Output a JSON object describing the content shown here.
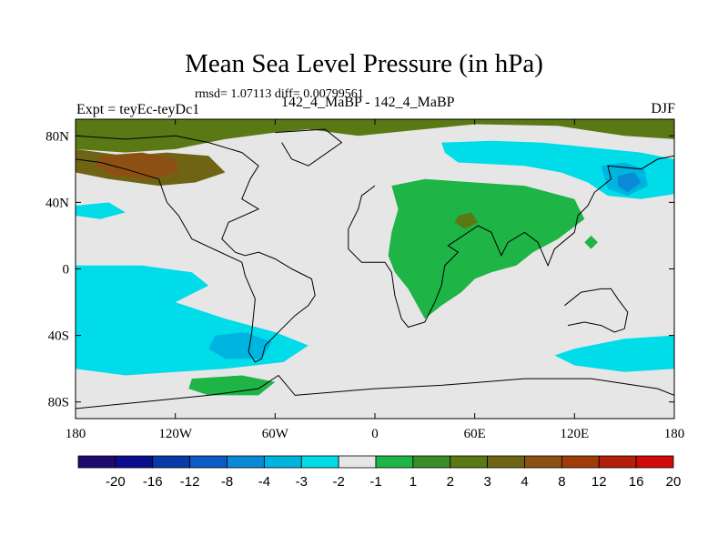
{
  "chart_data": {
    "type": "heatmap",
    "title": "Mean Sea Level Pressure (in hPa)",
    "stats_text": "rmsd= 1.07113 diff= 0.00799561",
    "left_label": "Expt = teyEc-teyDc1",
    "center_label": "142_4_MaBP - 142_4_MaBP",
    "right_label": "DJF",
    "xlim": [
      -180,
      180
    ],
    "ylim": [
      -90,
      90
    ],
    "x_ticks": [
      {
        "value": -180,
        "label": "180"
      },
      {
        "value": -120,
        "label": "120W"
      },
      {
        "value": -60,
        "label": "60W"
      },
      {
        "value": 0,
        "label": "0"
      },
      {
        "value": 60,
        "label": "60E"
      },
      {
        "value": 120,
        "label": "120E"
      },
      {
        "value": 180,
        "label": "180"
      }
    ],
    "y_ticks": [
      {
        "value": 80,
        "label": "80N"
      },
      {
        "value": 40,
        "label": "40N"
      },
      {
        "value": 0,
        "label": "0"
      },
      {
        "value": -40,
        "label": "40S"
      },
      {
        "value": -80,
        "label": "80S"
      }
    ],
    "colorbar": {
      "colors": [
        "#1e0a6e",
        "#0b0d8f",
        "#0a3aa8",
        "#0a5cc4",
        "#0a8ad6",
        "#00b4e0",
        "#00dce8",
        "#e6e6e6",
        "#1eb446",
        "#3c8c28",
        "#5a7814",
        "#6e6414",
        "#8c5014",
        "#a03c0a",
        "#b41e0a",
        "#d20a0a"
      ],
      "labels": [
        "-20",
        "-16",
        "-12",
        "-8",
        "-4",
        "-3",
        "-2",
        "-1",
        "1",
        "2",
        "3",
        "4",
        "8",
        "12",
        "16",
        "20"
      ]
    },
    "anomaly_regions": [
      {
        "name": "arctic-high",
        "color": "#5a7814",
        "points": [
          [
            -180,
            90
          ],
          [
            180,
            90
          ],
          [
            180,
            78
          ],
          [
            150,
            80
          ],
          [
            110,
            86
          ],
          [
            60,
            87
          ],
          [
            20,
            83
          ],
          [
            -10,
            80
          ],
          [
            -40,
            84
          ],
          [
            -60,
            82
          ],
          [
            -90,
            78
          ],
          [
            -120,
            72
          ],
          [
            -150,
            70
          ],
          [
            -180,
            72
          ]
        ]
      },
      {
        "name": "north-pacific-high",
        "color": "#6e6414",
        "points": [
          [
            -180,
            72
          ],
          [
            -150,
            68
          ],
          [
            -125,
            70
          ],
          [
            -100,
            68
          ],
          [
            -90,
            58
          ],
          [
            -108,
            52
          ],
          [
            -130,
            50
          ],
          [
            -160,
            54
          ],
          [
            -180,
            58
          ]
        ]
      },
      {
        "name": "north-pacific-core",
        "color": "#8c5014",
        "points": [
          [
            -165,
            68
          ],
          [
            -140,
            70
          ],
          [
            -120,
            66
          ],
          [
            -118,
            58
          ],
          [
            -135,
            54
          ],
          [
            -158,
            56
          ],
          [
            -168,
            62
          ]
        ]
      },
      {
        "name": "eurasia-low",
        "color": "#00dce8",
        "points": [
          [
            40,
            76
          ],
          [
            70,
            77
          ],
          [
            100,
            76
          ],
          [
            130,
            73
          ],
          [
            160,
            70
          ],
          [
            180,
            66
          ],
          [
            180,
            45
          ],
          [
            160,
            42
          ],
          [
            140,
            44
          ],
          [
            128,
            52
          ],
          [
            112,
            58
          ],
          [
            90,
            62
          ],
          [
            70,
            63
          ],
          [
            50,
            64
          ],
          [
            42,
            70
          ]
        ]
      },
      {
        "name": "east-asia-low",
        "color": "#00b4e0",
        "points": [
          [
            136,
            62
          ],
          [
            150,
            64
          ],
          [
            162,
            60
          ],
          [
            164,
            50
          ],
          [
            152,
            44
          ],
          [
            140,
            48
          ]
        ]
      },
      {
        "name": "east-asia-core",
        "color": "#0a8ad6",
        "points": [
          [
            146,
            56
          ],
          [
            156,
            58
          ],
          [
            160,
            52
          ],
          [
            152,
            46
          ],
          [
            146,
            50
          ]
        ]
      },
      {
        "name": "atlantic-low-west",
        "color": "#00dce8",
        "points": [
          [
            -180,
            38
          ],
          [
            -160,
            40
          ],
          [
            -150,
            34
          ],
          [
            -165,
            30
          ],
          [
            -180,
            32
          ]
        ]
      },
      {
        "name": "south-pacific-low",
        "color": "#00dce8",
        "points": [
          [
            -180,
            2
          ],
          [
            -140,
            2
          ],
          [
            -110,
            -2
          ],
          [
            -100,
            -10
          ],
          [
            -120,
            -20
          ],
          [
            -90,
            -30
          ],
          [
            -60,
            -38
          ],
          [
            -40,
            -46
          ],
          [
            -55,
            -56
          ],
          [
            -90,
            -60
          ],
          [
            -120,
            -62
          ],
          [
            -150,
            -64
          ],
          [
            -180,
            -60
          ]
        ]
      },
      {
        "name": "south-pacific-core",
        "color": "#00b4e0",
        "points": [
          [
            -96,
            -40
          ],
          [
            -78,
            -38
          ],
          [
            -62,
            -44
          ],
          [
            -68,
            -54
          ],
          [
            -90,
            -54
          ],
          [
            -100,
            -48
          ]
        ]
      },
      {
        "name": "indian-ocean-low",
        "color": "#00dce8",
        "points": [
          [
            120,
            -48
          ],
          [
            150,
            -42
          ],
          [
            180,
            -40
          ],
          [
            180,
            -60
          ],
          [
            150,
            -62
          ],
          [
            120,
            -58
          ],
          [
            108,
            -52
          ]
        ]
      },
      {
        "name": "southern-ocean-high",
        "color": "#1eb446",
        "points": [
          [
            -110,
            -66
          ],
          [
            -80,
            -64
          ],
          [
            -60,
            -68
          ],
          [
            -70,
            -76
          ],
          [
            -100,
            -76
          ],
          [
            -112,
            -72
          ]
        ]
      },
      {
        "name": "africa-europe-high",
        "color": "#1eb446",
        "points": [
          [
            10,
            50
          ],
          [
            30,
            54
          ],
          [
            60,
            52
          ],
          [
            90,
            50
          ],
          [
            120,
            42
          ],
          [
            126,
            30
          ],
          [
            110,
            18
          ],
          [
            95,
            10
          ],
          [
            85,
            2
          ],
          [
            70,
            -2
          ],
          [
            60,
            -6
          ],
          [
            52,
            -14
          ],
          [
            40,
            -22
          ],
          [
            30,
            -30
          ],
          [
            20,
            -12
          ],
          [
            12,
            -2
          ],
          [
            8,
            8
          ],
          [
            10,
            22
          ],
          [
            14,
            36
          ]
        ]
      },
      {
        "name": "arabia-high-core",
        "color": "#5a7814",
        "points": [
          [
            50,
            32
          ],
          [
            58,
            34
          ],
          [
            62,
            28
          ],
          [
            54,
            24
          ],
          [
            48,
            28
          ]
        ]
      },
      {
        "name": "small-high-a",
        "color": "#1eb446",
        "points": [
          [
            130,
            20
          ],
          [
            134,
            16
          ],
          [
            130,
            12
          ],
          [
            126,
            16
          ]
        ]
      }
    ],
    "coastlines": [
      {
        "name": "americas-outline",
        "points": [
          [
            -180,
            80
          ],
          [
            -150,
            78
          ],
          [
            -120,
            80
          ],
          [
            -100,
            76
          ],
          [
            -80,
            70
          ],
          [
            -70,
            62
          ],
          [
            -75,
            54
          ],
          [
            -80,
            42
          ],
          [
            -70,
            36
          ],
          [
            -88,
            28
          ],
          [
            -92,
            18
          ],
          [
            -84,
            10
          ],
          [
            -78,
            8
          ],
          [
            -70,
            10
          ],
          [
            -60,
            6
          ],
          [
            -50,
            0
          ],
          [
            -38,
            -6
          ],
          [
            -36,
            -16
          ],
          [
            -40,
            -22
          ],
          [
            -48,
            -28
          ],
          [
            -56,
            -36
          ],
          [
            -66,
            -46
          ],
          [
            -68,
            -54
          ],
          [
            -72,
            -56
          ],
          [
            -76,
            -50
          ],
          [
            -74,
            -38
          ],
          [
            -72,
            -18
          ],
          [
            -78,
            -4
          ],
          [
            -80,
            4
          ],
          [
            -110,
            18
          ],
          [
            -118,
            32
          ],
          [
            -125,
            40
          ],
          [
            -130,
            54
          ],
          [
            -150,
            60
          ],
          [
            -165,
            64
          ],
          [
            -180,
            66
          ]
        ]
      },
      {
        "name": "afro-eurasia-outline",
        "points": [
          [
            0,
            50
          ],
          [
            -8,
            44
          ],
          [
            -10,
            36
          ],
          [
            -16,
            24
          ],
          [
            -16,
            12
          ],
          [
            -8,
            4
          ],
          [
            6,
            4
          ],
          [
            10,
            -2
          ],
          [
            12,
            -16
          ],
          [
            16,
            -30
          ],
          [
            20,
            -35
          ],
          [
            30,
            -32
          ],
          [
            36,
            -20
          ],
          [
            40,
            -10
          ],
          [
            42,
            2
          ],
          [
            50,
            10
          ],
          [
            44,
            14
          ],
          [
            56,
            22
          ],
          [
            62,
            26
          ],
          [
            70,
            22
          ],
          [
            76,
            8
          ],
          [
            80,
            16
          ],
          [
            90,
            22
          ],
          [
            98,
            16
          ],
          [
            104,
            2
          ],
          [
            108,
            12
          ],
          [
            120,
            22
          ],
          [
            122,
            32
          ],
          [
            128,
            38
          ],
          [
            132,
            46
          ],
          [
            142,
            54
          ],
          [
            140,
            62
          ],
          [
            160,
            60
          ],
          [
            170,
            66
          ],
          [
            180,
            68
          ]
        ]
      },
      {
        "name": "australia-outline",
        "points": [
          [
            114,
            -22
          ],
          [
            124,
            -14
          ],
          [
            136,
            -12
          ],
          [
            142,
            -12
          ],
          [
            146,
            -18
          ],
          [
            152,
            -26
          ],
          [
            150,
            -36
          ],
          [
            144,
            -38
          ],
          [
            136,
            -34
          ],
          [
            126,
            -32
          ],
          [
            116,
            -34
          ]
        ]
      },
      {
        "name": "antarctica-outline",
        "points": [
          [
            -180,
            -84
          ],
          [
            -140,
            -80
          ],
          [
            -100,
            -76
          ],
          [
            -70,
            -72
          ],
          [
            -58,
            -64
          ],
          [
            -48,
            -76
          ],
          [
            0,
            -72
          ],
          [
            40,
            -70
          ],
          [
            90,
            -66
          ],
          [
            130,
            -66
          ],
          [
            170,
            -72
          ],
          [
            180,
            -76
          ]
        ]
      },
      {
        "name": "greenland-outline",
        "points": [
          [
            -60,
            82
          ],
          [
            -30,
            84
          ],
          [
            -20,
            76
          ],
          [
            -40,
            62
          ],
          [
            -50,
            66
          ],
          [
            -56,
            76
          ]
        ]
      }
    ]
  }
}
